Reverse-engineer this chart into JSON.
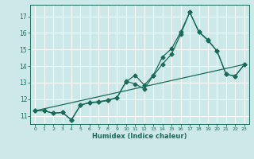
{
  "xlabel": "Humidex (Indice chaleur)",
  "bg_color": "#cce8e8",
  "line_color": "#1a6b5a",
  "grid_color": "#ffffff",
  "xlim": [
    -0.5,
    23.5
  ],
  "ylim": [
    10.5,
    17.7
  ],
  "yticks": [
    11,
    12,
    13,
    14,
    15,
    16,
    17
  ],
  "xticks": [
    0,
    1,
    2,
    3,
    4,
    5,
    6,
    7,
    8,
    9,
    10,
    11,
    12,
    13,
    14,
    15,
    16,
    17,
    18,
    19,
    20,
    21,
    22,
    23
  ],
  "line1_x": [
    0,
    1,
    2,
    3,
    4,
    5,
    6,
    7,
    8,
    9,
    10,
    11,
    12,
    13,
    14,
    15,
    16,
    17,
    18,
    19,
    20,
    21,
    22,
    23
  ],
  "line1_y": [
    11.3,
    11.3,
    11.15,
    11.2,
    10.75,
    11.65,
    11.8,
    11.85,
    11.95,
    12.1,
    13.05,
    13.45,
    12.85,
    13.45,
    14.55,
    15.05,
    16.05,
    17.25,
    16.05,
    15.55,
    14.9,
    13.5,
    13.4,
    14.1
  ],
  "line2_x": [
    0,
    1,
    2,
    3,
    4,
    5,
    6,
    7,
    8,
    9,
    10,
    11,
    12,
    13,
    14,
    15,
    16,
    17,
    18,
    19,
    20,
    21,
    22,
    23
  ],
  "line2_y": [
    11.3,
    11.3,
    11.15,
    11.2,
    10.75,
    11.65,
    11.78,
    11.82,
    11.92,
    12.08,
    13.08,
    12.92,
    12.62,
    13.42,
    14.12,
    14.72,
    15.92,
    17.25,
    16.08,
    15.58,
    14.9,
    13.5,
    13.4,
    14.1
  ],
  "line3_x": [
    0,
    23
  ],
  "line3_y": [
    11.3,
    14.1
  ]
}
